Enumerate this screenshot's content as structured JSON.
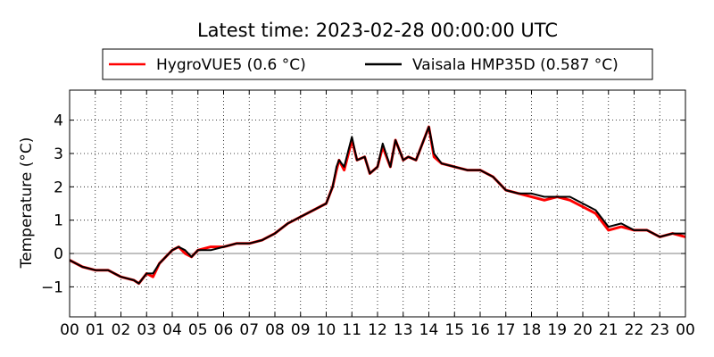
{
  "chart_data": {
    "type": "line",
    "title": "Latest time: 2023-02-28 00:00:00 UTC",
    "xlabel": "",
    "ylabel": "Temperature (°C)",
    "xlim": [
      0,
      24
    ],
    "ylim": [
      -1.9,
      4.9
    ],
    "grid": true,
    "legend_position": "top-center",
    "x_ticks": [
      "00",
      "01",
      "02",
      "03",
      "04",
      "05",
      "06",
      "07",
      "08",
      "09",
      "10",
      "11",
      "12",
      "13",
      "14",
      "15",
      "16",
      "17",
      "18",
      "19",
      "20",
      "21",
      "22",
      "23",
      "00"
    ],
    "y_ticks": [
      -1,
      0,
      1,
      2,
      3,
      4
    ],
    "series": [
      {
        "name": "HygroVUE5 (0.6 °C)",
        "color": "#ff0000",
        "x": [
          0,
          0.5,
          1,
          1.5,
          2,
          2.5,
          2.7,
          3,
          3.25,
          3.5,
          4,
          4.25,
          4.5,
          4.75,
          5,
          5.5,
          6,
          6.5,
          7,
          7.5,
          8,
          8.5,
          9,
          9.5,
          10,
          10.25,
          10.4,
          10.5,
          10.7,
          11,
          11.2,
          11.5,
          11.7,
          12,
          12.2,
          12.5,
          12.7,
          13,
          13.2,
          13.5,
          13.7,
          14,
          14.2,
          14.5,
          15,
          15.5,
          16,
          16.5,
          17,
          17.5,
          18,
          18.5,
          19,
          19.5,
          20,
          20.5,
          21,
          21.5,
          22,
          22.5,
          23,
          23.5,
          24
        ],
        "y": [
          -0.2,
          -0.4,
          -0.5,
          -0.5,
          -0.7,
          -0.8,
          -0.9,
          -0.6,
          -0.7,
          -0.3,
          0.1,
          0.2,
          0.0,
          -0.1,
          0.1,
          0.2,
          0.2,
          0.3,
          0.3,
          0.4,
          0.6,
          0.9,
          1.1,
          1.3,
          1.5,
          2.0,
          2.5,
          2.8,
          2.5,
          3.4,
          2.8,
          2.9,
          2.4,
          2.6,
          3.2,
          2.6,
          3.4,
          2.8,
          2.9,
          2.8,
          3.2,
          3.8,
          2.9,
          2.7,
          2.6,
          2.5,
          2.5,
          2.3,
          1.9,
          1.8,
          1.7,
          1.6,
          1.7,
          1.6,
          1.4,
          1.2,
          0.7,
          0.8,
          0.7,
          0.7,
          0.5,
          0.6,
          0.5
        ]
      },
      {
        "name": "Vaisala HMP35D (0.587 °C)",
        "color": "#000000",
        "x": [
          0,
          0.5,
          1,
          1.5,
          2,
          2.5,
          2.7,
          3,
          3.25,
          3.5,
          4,
          4.25,
          4.5,
          4.75,
          5,
          5.5,
          6,
          6.5,
          7,
          7.5,
          8,
          8.5,
          9,
          9.5,
          10,
          10.25,
          10.4,
          10.5,
          10.7,
          11,
          11.2,
          11.5,
          11.7,
          12,
          12.2,
          12.5,
          12.7,
          13,
          13.2,
          13.5,
          13.7,
          14,
          14.2,
          14.5,
          15,
          15.5,
          16,
          16.5,
          17,
          17.5,
          18,
          18.5,
          19,
          19.5,
          20,
          20.5,
          21,
          21.5,
          22,
          22.5,
          23,
          23.5,
          24
        ],
        "y": [
          -0.2,
          -0.4,
          -0.5,
          -0.5,
          -0.7,
          -0.8,
          -0.9,
          -0.6,
          -0.6,
          -0.3,
          0.1,
          0.2,
          0.1,
          -0.1,
          0.1,
          0.1,
          0.2,
          0.3,
          0.3,
          0.4,
          0.6,
          0.9,
          1.1,
          1.3,
          1.5,
          2.0,
          2.6,
          2.8,
          2.6,
          3.5,
          2.8,
          2.9,
          2.4,
          2.6,
          3.3,
          2.6,
          3.4,
          2.8,
          2.9,
          2.8,
          3.2,
          3.8,
          3.0,
          2.7,
          2.6,
          2.5,
          2.5,
          2.3,
          1.9,
          1.8,
          1.8,
          1.7,
          1.7,
          1.7,
          1.5,
          1.3,
          0.8,
          0.9,
          0.7,
          0.7,
          0.5,
          0.6,
          0.6
        ]
      }
    ]
  }
}
